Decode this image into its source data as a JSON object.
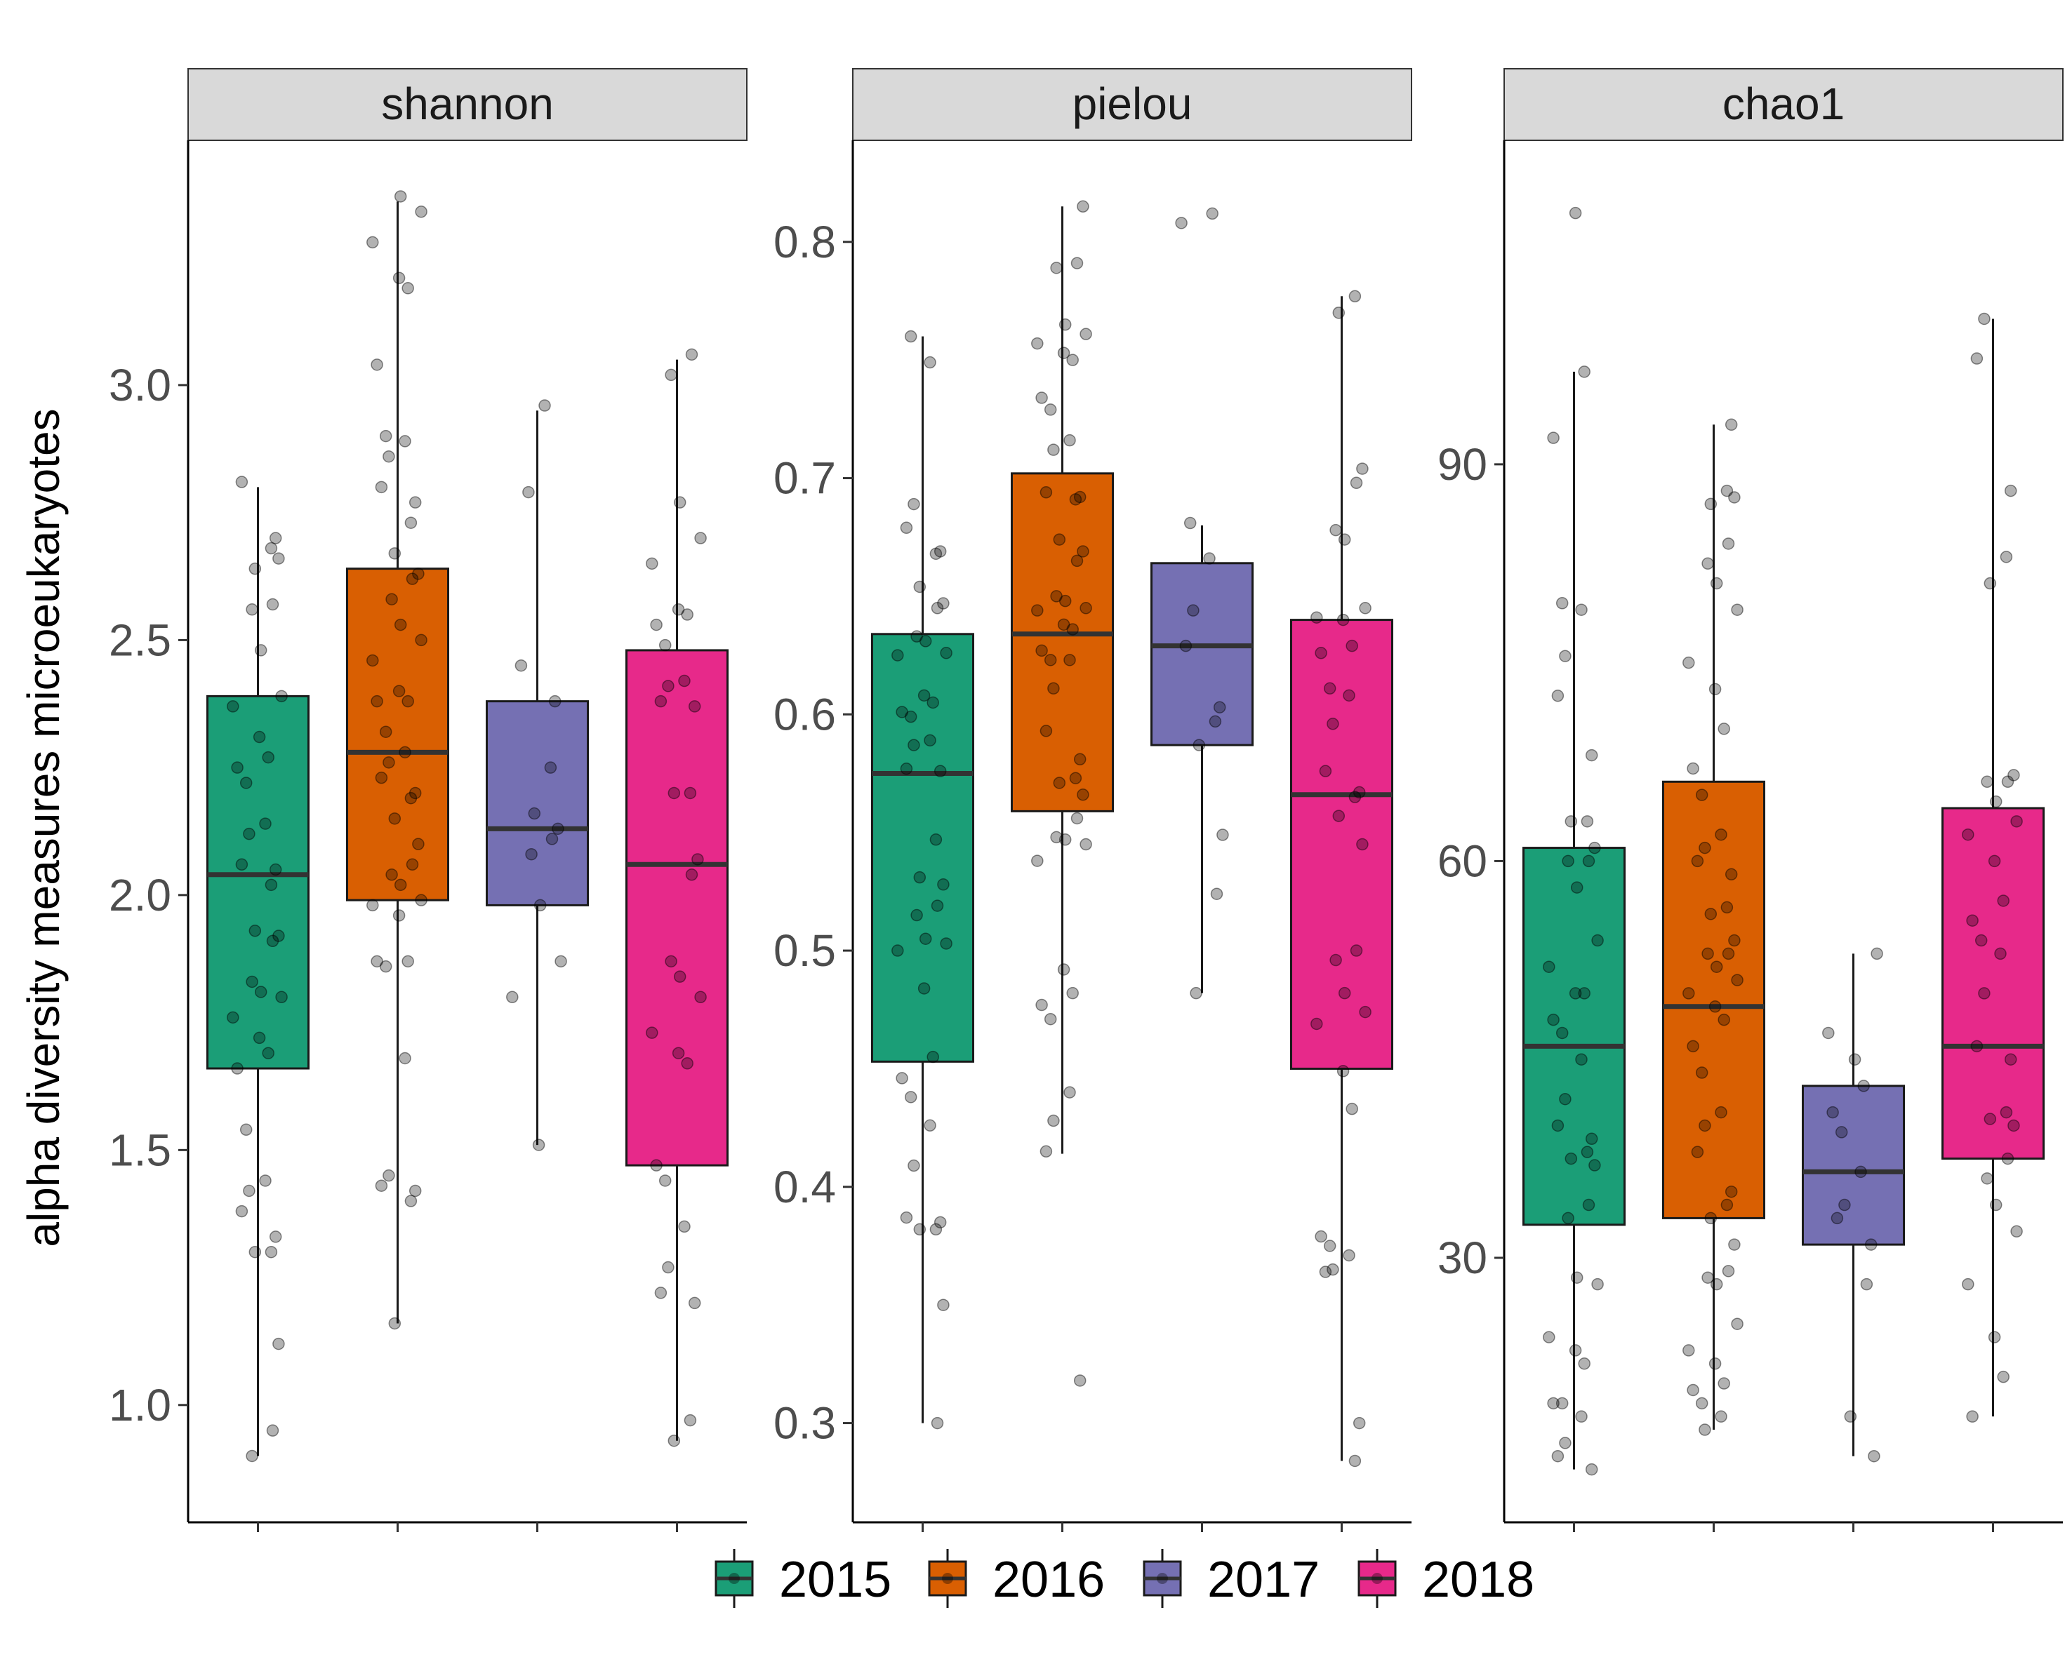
{
  "chart_data": {
    "type": "boxplot",
    "ylabel": "alpha diversity measures microeukaryotes",
    "categories": [
      "2015",
      "2016",
      "2017",
      "2018"
    ],
    "colors": {
      "2015": "#1b9e77",
      "2016": "#d95f02",
      "2017": "#7570b3",
      "2018": "#e7298a"
    },
    "legend": {
      "position": "bottom",
      "entries": [
        "2015",
        "2016",
        "2017",
        "2018"
      ]
    },
    "grid": false,
    "panels": [
      {
        "title": "shannon",
        "ylim": [
          0.77,
          3.48
        ],
        "yticks": [
          1.0,
          1.5,
          2.0,
          2.5,
          3.0
        ],
        "ytick_labels": [
          "1.0",
          "1.5",
          "2.0",
          "2.5",
          "3.0"
        ],
        "boxes": [
          {
            "category": "2015",
            "whisker_low": 0.9,
            "q1": 1.66,
            "median": 2.04,
            "q3": 2.39,
            "whisker_high": 2.8
          },
          {
            "category": "2016",
            "whisker_low": 1.16,
            "q1": 1.99,
            "median": 2.28,
            "q3": 2.64,
            "whisker_high": 3.36
          },
          {
            "category": "2017",
            "whisker_low": 1.51,
            "q1": 1.98,
            "median": 2.13,
            "q3": 2.38,
            "whisker_high": 2.95
          },
          {
            "category": "2018",
            "whisker_low": 0.93,
            "q1": 1.47,
            "median": 2.06,
            "q3": 2.48,
            "whisker_high": 3.05
          }
        ],
        "points": [
          [
            2.81,
            2.7,
            2.68,
            2.64,
            2.66,
            2.57,
            2.56,
            2.48,
            2.39,
            2.37,
            2.31,
            2.27,
            2.25,
            2.22,
            2.14,
            2.12,
            2.06,
            2.05,
            2.02,
            1.93,
            1.92,
            1.91,
            1.83,
            1.81,
            1.8,
            1.76,
            1.72,
            1.69,
            1.66,
            1.54,
            1.44,
            1.42,
            1.38,
            1.33,
            1.3,
            1.3,
            1.12,
            0.95,
            0.9
          ],
          [
            3.37,
            3.34,
            3.28,
            3.21,
            3.19,
            3.04,
            2.9,
            2.89,
            2.86,
            2.8,
            2.77,
            2.73,
            2.67,
            2.63,
            2.62,
            2.58,
            2.53,
            2.5,
            2.46,
            2.4,
            2.38,
            2.38,
            2.32,
            2.28,
            2.26,
            2.23,
            2.2,
            2.19,
            2.15,
            2.1,
            2.06,
            2.04,
            2.02,
            1.99,
            1.98,
            1.96,
            1.87,
            1.87,
            1.86,
            1.68,
            1.45,
            1.43,
            1.42,
            1.4,
            1.16
          ],
          [
            2.96,
            2.79,
            2.45,
            2.38,
            2.25,
            2.16,
            2.13,
            2.11,
            2.08,
            1.98,
            1.87,
            1.8,
            1.51
          ],
          [
            3.06,
            3.02,
            2.77,
            2.7,
            2.65,
            2.56,
            2.55,
            2.53,
            2.49,
            2.42,
            2.41,
            2.38,
            2.37,
            2.2,
            2.2,
            2.07,
            2.04,
            1.87,
            1.84,
            1.8,
            1.73,
            1.69,
            1.67,
            1.47,
            1.44,
            1.35,
            1.27,
            1.22,
            1.2,
            0.97,
            0.93
          ]
        ]
      },
      {
        "title": "pielou",
        "ylim": [
          0.258,
          0.843
        ],
        "yticks": [
          0.3,
          0.4,
          0.5,
          0.6,
          0.7,
          0.8
        ],
        "ytick_labels": [
          "0.3",
          "0.4",
          "0.5",
          "0.6",
          "0.7",
          "0.8"
        ],
        "boxes": [
          {
            "category": "2015",
            "whisker_low": 0.3,
            "q1": 0.453,
            "median": 0.575,
            "q3": 0.634,
            "whisker_high": 0.76
          },
          {
            "category": "2016",
            "whisker_low": 0.414,
            "q1": 0.559,
            "median": 0.634,
            "q3": 0.702,
            "whisker_high": 0.815
          },
          {
            "category": "2017",
            "whisker_low": 0.482,
            "q1": 0.587,
            "median": 0.629,
            "q3": 0.664,
            "whisker_high": 0.68
          },
          {
            "category": "2018",
            "whisker_low": 0.284,
            "q1": 0.45,
            "median": 0.566,
            "q3": 0.64,
            "whisker_high": 0.777
          }
        ],
        "points": [
          [
            0.76,
            0.749,
            0.689,
            0.679,
            0.669,
            0.668,
            0.654,
            0.647,
            0.645,
            0.633,
            0.631,
            0.626,
            0.625,
            0.608,
            0.605,
            0.601,
            0.599,
            0.589,
            0.587,
            0.577,
            0.576,
            0.547,
            0.531,
            0.528,
            0.519,
            0.515,
            0.505,
            0.503,
            0.5,
            0.484,
            0.455,
            0.446,
            0.438,
            0.426,
            0.409,
            0.387,
            0.385,
            0.382,
            0.382,
            0.35,
            0.3
          ],
          [
            0.815,
            0.791,
            0.789,
            0.765,
            0.761,
            0.757,
            0.753,
            0.75,
            0.734,
            0.729,
            0.716,
            0.712,
            0.694,
            0.692,
            0.691,
            0.674,
            0.669,
            0.665,
            0.65,
            0.648,
            0.645,
            0.644,
            0.638,
            0.636,
            0.627,
            0.623,
            0.623,
            0.611,
            0.593,
            0.581,
            0.573,
            0.571,
            0.566,
            0.556,
            0.548,
            0.547,
            0.545,
            0.538,
            0.492,
            0.482,
            0.477,
            0.471,
            0.44,
            0.428,
            0.415,
            0.318
          ],
          [
            0.812,
            0.808,
            0.681,
            0.666,
            0.644,
            0.629,
            0.603,
            0.597,
            0.587,
            0.549,
            0.524,
            0.482
          ],
          [
            0.777,
            0.77,
            0.704,
            0.698,
            0.678,
            0.674,
            0.645,
            0.641,
            0.64,
            0.629,
            0.626,
            0.611,
            0.608,
            0.596,
            0.576,
            0.567,
            0.565,
            0.557,
            0.545,
            0.5,
            0.496,
            0.482,
            0.474,
            0.469,
            0.449,
            0.433,
            0.379,
            0.375,
            0.371,
            0.365,
            0.364,
            0.3,
            0.284
          ]
        ]
      },
      {
        "title": "chao1",
        "ylim": [
          10,
          114.5
        ],
        "yticks": [
          30,
          60,
          90
        ],
        "ytick_labels": [
          "30",
          "60",
          "90"
        ],
        "boxes": [
          {
            "category": "2015",
            "whisker_low": 14,
            "q1": 32.5,
            "median": 46,
            "q3": 61,
            "whisker_high": 97
          },
          {
            "category": "2016",
            "whisker_low": 17,
            "q1": 33,
            "median": 49,
            "q3": 66,
            "whisker_high": 93
          },
          {
            "category": "2017",
            "whisker_low": 15,
            "q1": 31,
            "median": 36.5,
            "q3": 43,
            "whisker_high": 53
          },
          {
            "category": "2018",
            "whisker_low": 18,
            "q1": 37.5,
            "median": 46,
            "q3": 64,
            "whisker_high": 101
          }
        ],
        "points": [
          [
            109,
            97,
            92,
            79.5,
            79,
            75.5,
            72.5,
            68,
            63,
            63,
            61,
            60,
            60,
            58,
            54,
            52,
            50,
            50,
            48,
            47,
            45,
            42,
            40,
            39,
            38,
            37.5,
            37,
            34,
            33,
            28.5,
            28,
            24,
            23,
            22,
            19,
            19,
            18,
            16,
            15,
            14
          ],
          [
            93,
            88,
            87,
            87.5,
            84,
            82.5,
            81,
            79,
            75,
            73,
            70,
            67,
            65,
            62,
            61,
            60,
            59,
            56.5,
            56,
            54,
            53,
            53,
            52,
            51,
            50,
            49,
            48,
            46,
            44,
            41,
            40,
            38,
            35,
            34,
            33,
            31,
            29,
            28.5,
            28,
            25,
            23,
            22,
            20.5,
            20,
            19,
            18,
            17
          ],
          [
            53,
            47,
            45,
            43,
            41,
            39.5,
            36.5,
            34,
            33,
            31,
            28,
            18,
            15
          ],
          [
            101,
            98,
            88,
            83,
            81,
            66.5,
            66,
            66,
            64.5,
            63,
            62,
            60,
            57,
            55.5,
            54,
            53,
            50,
            46,
            45,
            41,
            40.5,
            40,
            37.5,
            36,
            34,
            32,
            28,
            24,
            21,
            18
          ]
        ]
      }
    ]
  }
}
